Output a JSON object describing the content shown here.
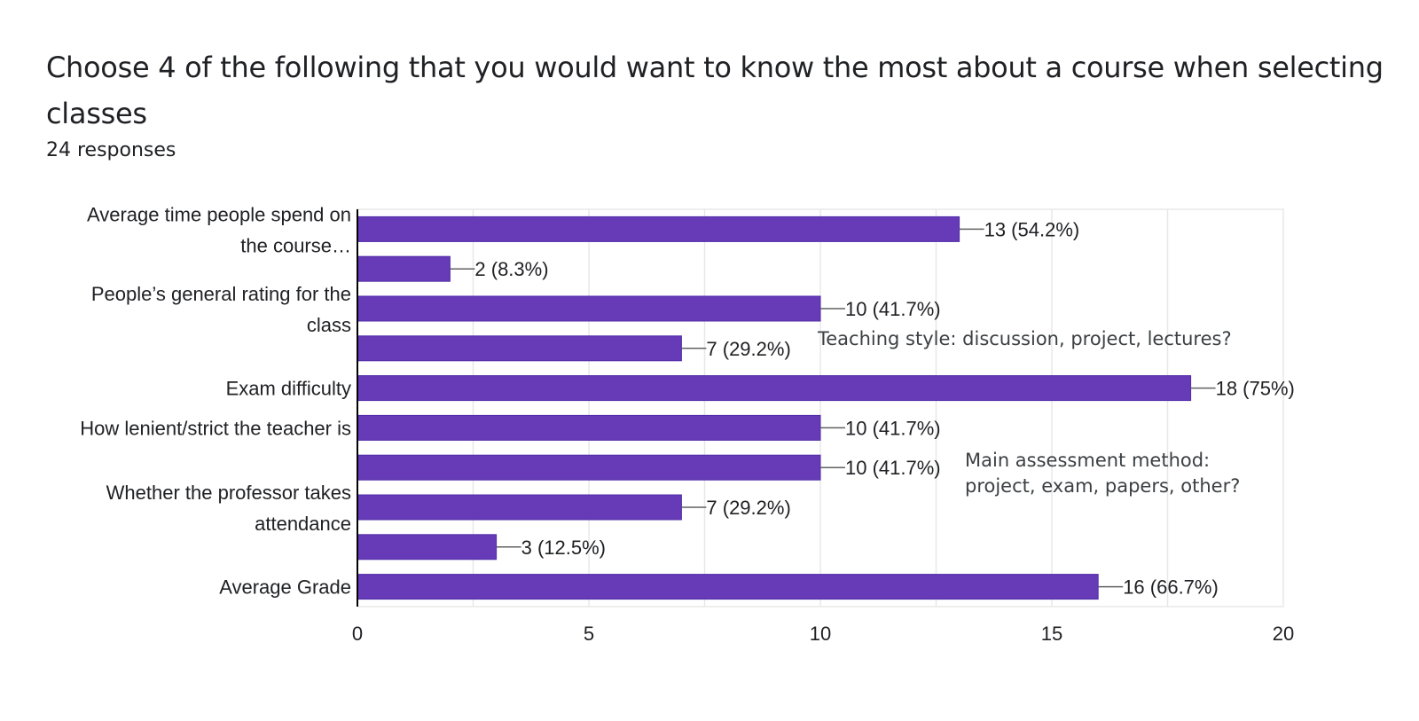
{
  "header": {
    "title": "Choose 4 of the following that you would want to know the most about a course when selecting classes",
    "subtitle": "24 responses"
  },
  "colors": {
    "bar": "#673ab7",
    "bar_border": "#512da8",
    "grid": "#e8e8e8",
    "axis": "#000000",
    "text": "#202124",
    "leader": "#616161"
  },
  "notes": {
    "teaching_style": "Teaching style: discussion, project, lectures?",
    "assessment": "Main assessment method: project, exam, papers, other?"
  },
  "chart_data": {
    "type": "bar",
    "orientation": "horizontal",
    "title": "",
    "xlabel": "",
    "ylabel": "",
    "xlim": [
      0,
      20
    ],
    "xticks": [
      0,
      5,
      10,
      15,
      20
    ],
    "grid": true,
    "category_labels": [
      [
        "Average time people spend on",
        "the course…"
      ],
      [],
      [
        "People’s general rating for the",
        "class"
      ],
      [],
      [
        "Exam difficulty"
      ],
      [
        "How lenient/strict the teacher is"
      ],
      [],
      [
        "Whether the professor takes",
        "attendance"
      ],
      [],
      [
        "Average Grade"
      ]
    ],
    "values": [
      13,
      2,
      10,
      7,
      18,
      10,
      10,
      7,
      3,
      16
    ],
    "data_labels": [
      "13 (54.2%)",
      "2 (8.3%)",
      "10 (41.7%)",
      "7 (29.2%)",
      "18 (75%)",
      "10 (41.7%)",
      "10 (41.7%)",
      "7 (29.2%)",
      "3 (12.5%)",
      "16 (66.7%)"
    ]
  }
}
